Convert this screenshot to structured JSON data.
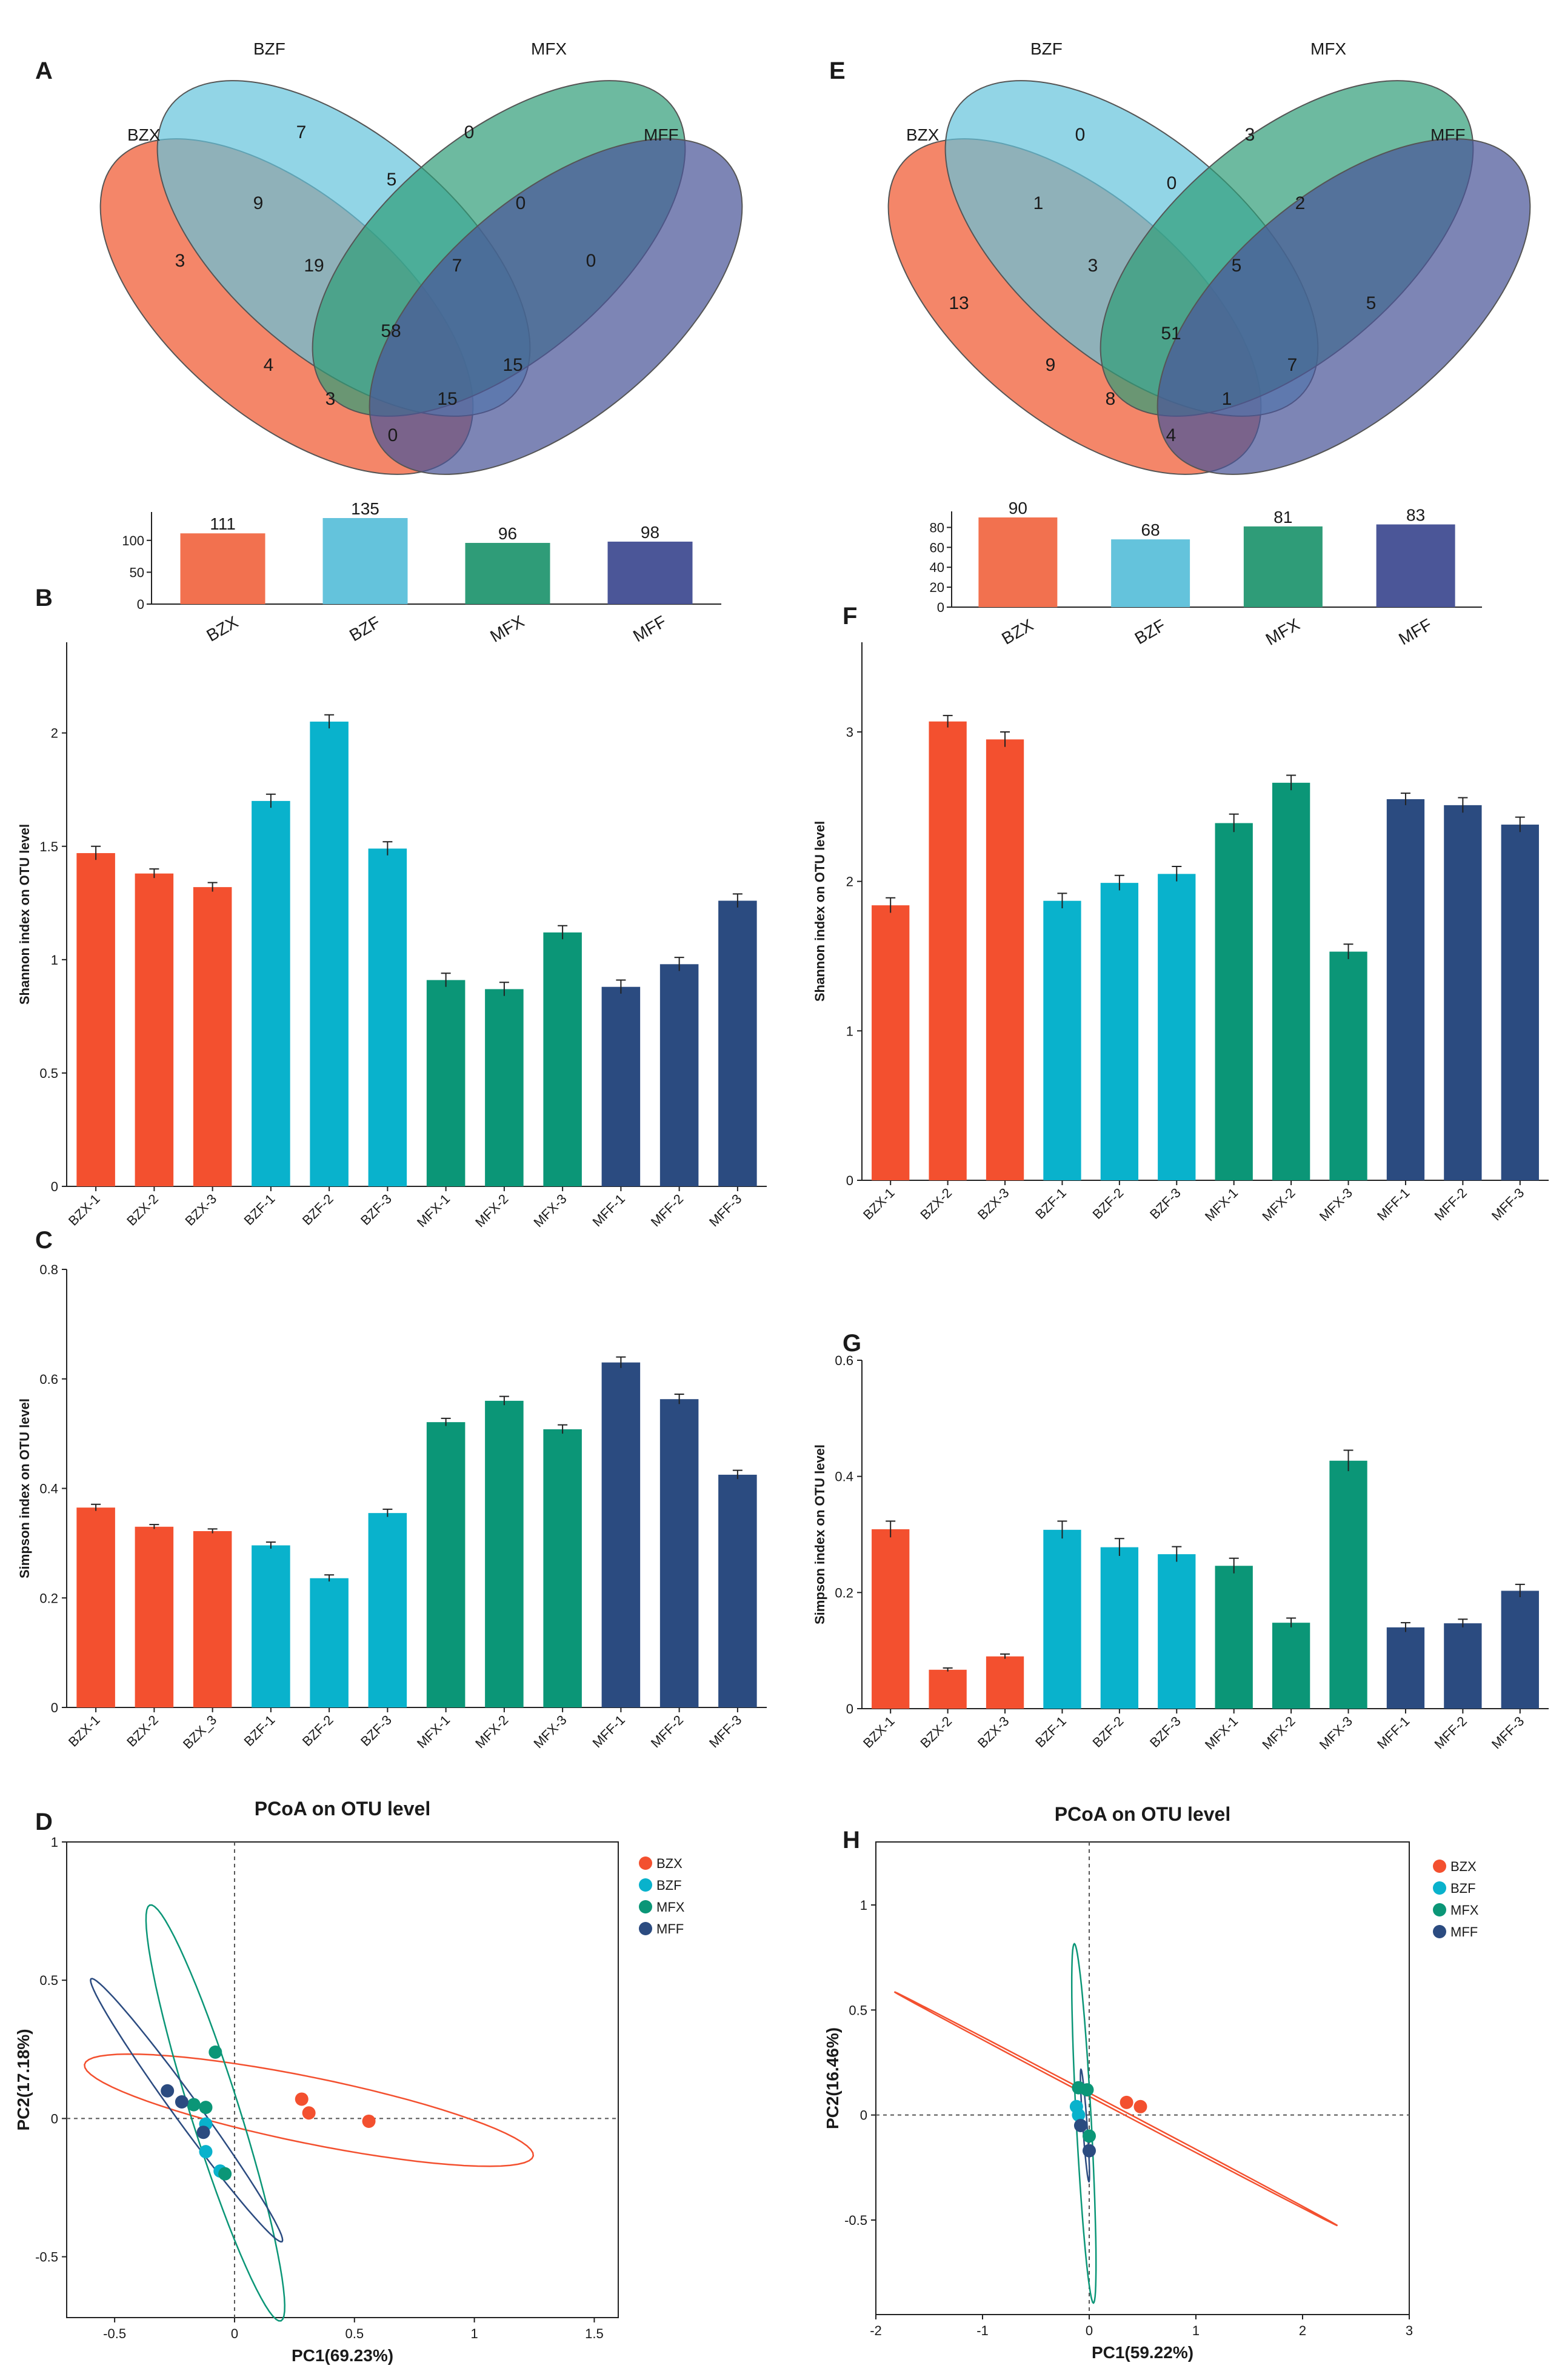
{
  "panel_labels": {
    "A": "A",
    "B": "B",
    "C": "C",
    "D": "D",
    "E": "E",
    "F": "F",
    "G": "G",
    "H": "H"
  },
  "colors": {
    "BZX": "#f3502f",
    "BZF": "#09b2cc",
    "MFX": "#0b9677",
    "MFF": "#2b4b80",
    "BZX_venn": "#f2714f",
    "BZF_venn": "#64c3dc",
    "MFX_venn": "#2f9c78",
    "MFF_venn": "#4b5698"
  },
  "chart_data": [
    {
      "type": "venn",
      "panel": "A",
      "sets": [
        "BZX",
        "BZF",
        "MFX",
        "MFF"
      ],
      "regions": {
        "BZX_only": "3",
        "BZF_only": "7",
        "MFX_only": "0",
        "MFF_only": "0",
        "BZX_BZF": "9",
        "BZF_MFX": "5",
        "MFX_MFF": "0",
        "BZX_MFF": "0",
        "BZX_BZF_MFX": "19",
        "BZF_MFX_MFF": "7",
        "BZX_MFX": "4",
        "BZX_MFX_MFF": "3",
        "BZF_MFF": "15",
        "BZX_BZF_MFF": "15",
        "all": "58"
      },
      "totals": {
        "categories": [
          "BZX",
          "BZF",
          "MFX",
          "MFF"
        ],
        "values": [
          111,
          135,
          96,
          98
        ],
        "yticks": [
          0,
          50,
          100
        ],
        "ylim": [
          0,
          135
        ]
      }
    },
    {
      "type": "venn",
      "panel": "E",
      "sets": [
        "BZX",
        "BZF",
        "MFX",
        "MFF"
      ],
      "regions": {
        "BZX_only": "13",
        "BZF_only": "0",
        "MFX_only": "3",
        "MFF_only": "5",
        "BZX_BZF": "1",
        "BZF_MFX": "0",
        "MFX_MFF": "2",
        "BZX_MFF": "4",
        "BZX_BZF_MFX": "3",
        "BZF_MFX_MFF": "5",
        "BZX_MFX": "9",
        "BZX_MFX_MFF": "8",
        "BZF_MFF": "7",
        "BZX_BZF_MFF": "1",
        "all": "51"
      },
      "totals": {
        "categories": [
          "BZX",
          "BZF",
          "MFX",
          "MFF"
        ],
        "values": [
          90,
          68,
          81,
          83
        ],
        "yticks": [
          0,
          20,
          40,
          60,
          80
        ],
        "ylim": [
          0,
          90
        ]
      }
    },
    {
      "type": "bar",
      "panel": "B",
      "ylabel": "Shannon index on OTU level",
      "categories": [
        "BZX-1",
        "BZX-2",
        "BZX-3",
        "BZF-1",
        "BZF-2",
        "BZF-3",
        "MFX-1",
        "MFX-2",
        "MFX-3",
        "MFF-1",
        "MFF-2",
        "MFF-3"
      ],
      "values": [
        1.47,
        1.38,
        1.32,
        1.7,
        2.05,
        1.49,
        0.91,
        0.87,
        1.12,
        0.88,
        0.98,
        1.26
      ],
      "errors": [
        0.03,
        0.02,
        0.02,
        0.03,
        0.03,
        0.03,
        0.03,
        0.03,
        0.03,
        0.03,
        0.03,
        0.03
      ],
      "groups": [
        "BZX",
        "BZX",
        "BZX",
        "BZF",
        "BZF",
        "BZF",
        "MFX",
        "MFX",
        "MFX",
        "MFF",
        "MFF",
        "MFF"
      ],
      "ylim": [
        0,
        2.4
      ],
      "yticks": [
        0,
        0.5,
        1,
        1.5,
        2
      ],
      "ytick_labels": [
        "0",
        "0.5",
        "1",
        "1.5",
        "2"
      ]
    },
    {
      "type": "bar",
      "panel": "F",
      "ylabel": "Shannon index on OTU level",
      "categories": [
        "BZX-1",
        "BZX-2",
        "BZX-3",
        "BZF-1",
        "BZF-2",
        "BZF-3",
        "MFX-1",
        "MFX-2",
        "MFX-3",
        "MFF-1",
        "MFF-2",
        "MFF-3"
      ],
      "values": [
        1.84,
        3.07,
        2.95,
        1.87,
        1.99,
        2.05,
        2.39,
        2.66,
        1.53,
        2.55,
        2.51,
        2.38
      ],
      "errors": [
        0.05,
        0.04,
        0.05,
        0.05,
        0.05,
        0.05,
        0.06,
        0.05,
        0.05,
        0.04,
        0.05,
        0.05
      ],
      "groups": [
        "BZX",
        "BZX",
        "BZX",
        "BZF",
        "BZF",
        "BZF",
        "MFX",
        "MFX",
        "MFX",
        "MFF",
        "MFF",
        "MFF"
      ],
      "ylim": [
        0,
        3.6
      ],
      "yticks": [
        0,
        1,
        2,
        3
      ],
      "ytick_labels": [
        "0",
        "1",
        "2",
        "3"
      ]
    },
    {
      "type": "bar",
      "panel": "C",
      "ylabel": "Simpson index on OTU level",
      "categories": [
        "BZX-1",
        "BZX-2",
        "BZX_3",
        "BZF-1",
        "BZF-2",
        "BZF-3",
        "MFX-1",
        "MFX-2",
        "MFX-3",
        "MFF-1",
        "MFF-2",
        "MFF-3"
      ],
      "values": [
        0.365,
        0.33,
        0.322,
        0.296,
        0.236,
        0.355,
        0.521,
        0.56,
        0.508,
        0.63,
        0.563,
        0.425
      ],
      "errors": [
        0.006,
        0.004,
        0.004,
        0.006,
        0.006,
        0.007,
        0.007,
        0.008,
        0.008,
        0.01,
        0.009,
        0.008
      ],
      "groups": [
        "BZX",
        "BZX",
        "BZX",
        "BZF",
        "BZF",
        "BZF",
        "MFX",
        "MFX",
        "MFX",
        "MFF",
        "MFF",
        "MFF"
      ],
      "ylim": [
        0,
        0.8
      ],
      "yticks": [
        0,
        0.2,
        0.4,
        0.6,
        0.8
      ],
      "ytick_labels": [
        "0",
        "0.2",
        "0.4",
        "0.6",
        "0.8"
      ]
    },
    {
      "type": "bar",
      "panel": "G",
      "ylabel": "Simpson index on OTU level",
      "categories": [
        "BZX-1",
        "BZX-2",
        "BZX-3",
        "BZF-1",
        "BZF-2",
        "BZF-3",
        "MFX-1",
        "MFX-2",
        "MFX-3",
        "MFF-1",
        "MFF-2",
        "MFF-3"
      ],
      "values": [
        0.309,
        0.067,
        0.09,
        0.308,
        0.278,
        0.266,
        0.246,
        0.148,
        0.427,
        0.14,
        0.147,
        0.203
      ],
      "errors": [
        0.014,
        0.003,
        0.004,
        0.015,
        0.015,
        0.013,
        0.013,
        0.008,
        0.018,
        0.008,
        0.007,
        0.011
      ],
      "groups": [
        "BZX",
        "BZX",
        "BZX",
        "BZF",
        "BZF",
        "BZF",
        "MFX",
        "MFX",
        "MFX",
        "MFF",
        "MFF",
        "MFF"
      ],
      "ylim": [
        0,
        0.6
      ],
      "yticks": [
        0,
        0.2,
        0.4,
        0.6
      ],
      "ytick_labels": [
        "0",
        "0.2",
        "0.4",
        "0.6"
      ]
    },
    {
      "type": "scatter",
      "panel": "D",
      "title": "PCoA on OTU level",
      "xlabel": "PC1(69.23%)",
      "ylabel": "PC2(17.18%)",
      "xlim": [
        -0.7,
        1.6
      ],
      "ylim": [
        -0.72,
        1.0
      ],
      "xticks": [
        -0.5,
        0,
        0.5,
        1,
        1.5
      ],
      "xtick_labels": [
        "-0.5",
        "0",
        "0.5",
        "1",
        "1.5"
      ],
      "yticks": [
        -0.5,
        0,
        0.5,
        1
      ],
      "ytick_labels": [
        "-0.5",
        "0",
        "0.5",
        "1"
      ],
      "legend": [
        "BZX",
        "BZF",
        "MFX",
        "MFF"
      ],
      "legend_position": "top-right",
      "points": [
        {
          "group": "BZX",
          "x": 0.28,
          "y": 0.07
        },
        {
          "group": "BZX",
          "x": 0.31,
          "y": 0.02
        },
        {
          "group": "BZX",
          "x": 0.56,
          "y": -0.01
        },
        {
          "group": "BZF",
          "x": -0.12,
          "y": -0.02
        },
        {
          "group": "BZF",
          "x": -0.12,
          "y": -0.12
        },
        {
          "group": "BZF",
          "x": -0.06,
          "y": -0.19
        },
        {
          "group": "MFX",
          "x": -0.08,
          "y": 0.24
        },
        {
          "group": "MFX",
          "x": -0.17,
          "y": 0.05
        },
        {
          "group": "MFX",
          "x": -0.12,
          "y": 0.04
        },
        {
          "group": "MFX",
          "x": -0.04,
          "y": -0.2
        },
        {
          "group": "MFF",
          "x": -0.28,
          "y": 0.1
        },
        {
          "group": "MFF",
          "x": -0.22,
          "y": 0.06
        },
        {
          "group": "MFF",
          "x": -0.13,
          "y": -0.05
        }
      ],
      "ellipses": [
        {
          "group": "BZX",
          "cx": 0.31,
          "cy": 0.03,
          "rx": 0.95,
          "ry": 0.12,
          "angle": -10
        },
        {
          "group": "MFX",
          "cx": -0.08,
          "cy": 0.02,
          "rx": 0.8,
          "ry": 0.1,
          "angle": -70
        },
        {
          "group": "MFF",
          "cx": -0.2,
          "cy": 0.03,
          "rx": 0.62,
          "ry": 0.05,
          "angle": -50
        }
      ]
    },
    {
      "type": "scatter",
      "panel": "H",
      "title": "PCoA on OTU level",
      "xlabel": "PC1(59.22%)",
      "ylabel": "PC2(16.46%)",
      "xlim": [
        -2.0,
        3.0
      ],
      "ylim": [
        -0.95,
        1.3
      ],
      "xticks": [
        -2,
        -1,
        0,
        1,
        2,
        3
      ],
      "xtick_labels": [
        "-2",
        "-1",
        "0",
        "1",
        "2",
        "3"
      ],
      "yticks": [
        -0.5,
        0,
        0.5,
        1
      ],
      "ytick_labels": [
        "-0.5",
        "0",
        "0.5",
        "1"
      ],
      "legend": [
        "BZX",
        "BZF",
        "MFX",
        "MFF"
      ],
      "legend_position": "top-right",
      "points": [
        {
          "group": "BZX",
          "x": 0.35,
          "y": 0.06
        },
        {
          "group": "BZX",
          "x": 0.48,
          "y": 0.04
        },
        {
          "group": "BZF",
          "x": -0.12,
          "y": 0.04
        },
        {
          "group": "BZF",
          "x": -0.1,
          "y": 0.0
        },
        {
          "group": "MFX",
          "x": -0.1,
          "y": 0.13
        },
        {
          "group": "MFX",
          "x": -0.02,
          "y": 0.12
        },
        {
          "group": "MFX",
          "x": 0.0,
          "y": -0.1
        },
        {
          "group": "MFF",
          "x": -0.08,
          "y": -0.05
        },
        {
          "group": "MFF",
          "x": 0.0,
          "y": -0.17
        }
      ],
      "ellipses": [
        {
          "group": "BZX",
          "cx": 0.25,
          "cy": 0.03,
          "rx": 2.15,
          "ry": 0.008,
          "angle": -15
        },
        {
          "group": "MFX",
          "cx": -0.05,
          "cy": -0.04,
          "rx": 0.86,
          "ry": 0.07,
          "angle": -84
        },
        {
          "group": "MFF",
          "cx": -0.04,
          "cy": -0.05,
          "rx": 0.27,
          "ry": 0.02,
          "angle": -82
        }
      ]
    }
  ]
}
